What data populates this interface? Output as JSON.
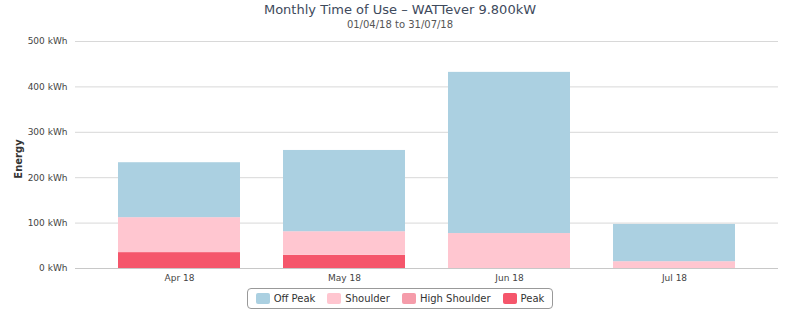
{
  "chart_data": {
    "type": "bar",
    "stacked": true,
    "title": "Monthly Time of Use – WATTever 9.800kW",
    "subtitle": "01/04/18 to 31/07/18",
    "y_label": "Energy",
    "categories": [
      "Apr 18",
      "May 18",
      "Jun 18",
      "Jul 18"
    ],
    "series": [
      {
        "name": "Off Peak",
        "color": "#abd0e1",
        "values": [
          121,
          179,
          355,
          82
        ]
      },
      {
        "name": "Shoulder",
        "color": "#ffc6d0",
        "values": [
          77,
          52,
          77,
          15
        ]
      },
      {
        "name": "High Shoulder",
        "color": "#f59caa",
        "values": [
          0,
          0,
          0,
          0
        ]
      },
      {
        "name": "Peak",
        "color": "#f5566b",
        "values": [
          35,
          29,
          0,
          0
        ]
      }
    ],
    "ylim": [
      0,
      500
    ],
    "yticks": [
      {
        "value": 0,
        "label": "0 kWh"
      },
      {
        "value": 100,
        "label": "100 kWh"
      },
      {
        "value": 200,
        "label": "200 kWh"
      },
      {
        "value": 300,
        "label": "300 kWh"
      },
      {
        "value": 400,
        "label": "400 kWh"
      },
      {
        "value": 500,
        "label": "500 kWh"
      }
    ],
    "grid": true,
    "legend": "bottom"
  }
}
